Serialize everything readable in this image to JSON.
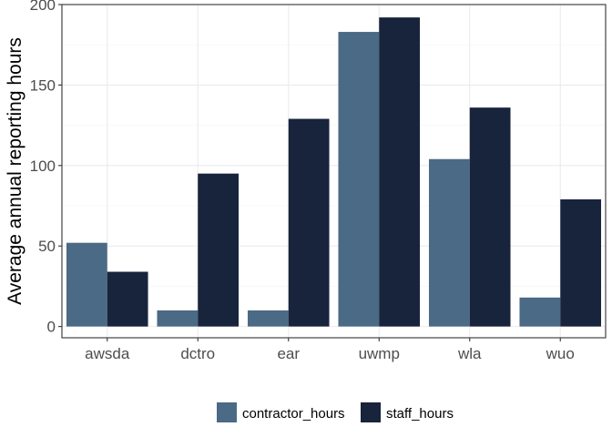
{
  "chart_data": {
    "type": "bar",
    "categories": [
      "awsda",
      "dctro",
      "ear",
      "uwmp",
      "wla",
      "wuo"
    ],
    "series": [
      {
        "name": "contractor_hours",
        "color": "#4a6a85",
        "values": [
          52,
          10,
          10,
          183,
          104,
          18
        ]
      },
      {
        "name": "staff_hours",
        "color": "#18233c",
        "values": [
          34,
          95,
          129,
          192,
          136,
          79
        ]
      }
    ],
    "title": "",
    "xlabel": "",
    "ylabel": "Average annual reporting hours",
    "ylim": [
      -7,
      200
    ],
    "yticks": [
      0,
      50,
      100,
      150,
      200
    ],
    "ytick_labels": [
      "0",
      "50",
      "100",
      "150",
      "200"
    ],
    "grid": true,
    "legend_position": "bottom",
    "colors": {
      "panel_border": "#333333",
      "grid_major": "#ebebeb",
      "grid_minor": "#f5f5f5"
    }
  }
}
